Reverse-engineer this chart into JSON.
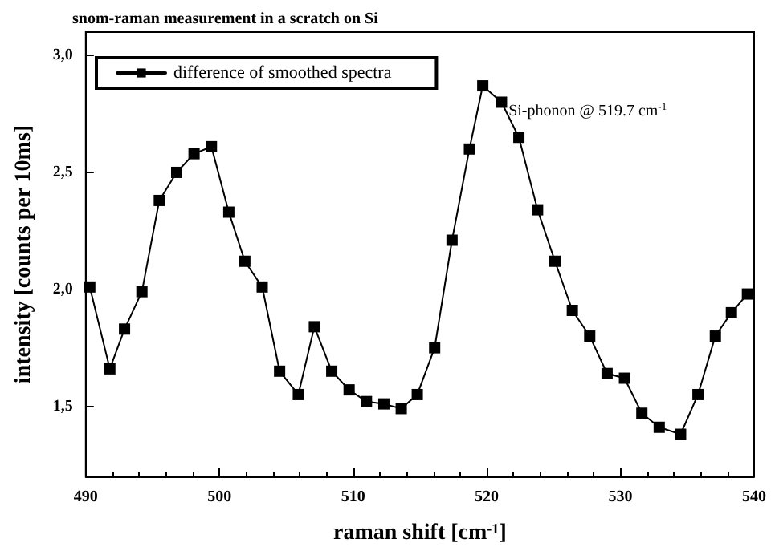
{
  "chart_data": {
    "type": "line",
    "title": "snom-raman measurement in a scratch on Si",
    "xlabel": "raman shift [cm$^{-1}$]",
    "ylabel": "intensity [counts per 10ms]",
    "annotations": [
      {
        "text": "Si-phonon @ 519.7 cm$^{-1}$",
        "x": 519.7,
        "y": 2.87
      }
    ],
    "x": [
      490.3,
      491.8,
      492.9,
      494.2,
      495.5,
      496.8,
      498.1,
      499.4,
      500.7,
      501.9,
      503.2,
      504.5,
      505.9,
      507.1,
      508.4,
      509.7,
      511.0,
      512.3,
      513.6,
      514.8,
      516.1,
      517.4,
      518.7,
      519.7,
      521.1,
      522.4,
      523.8,
      525.1,
      526.4,
      527.7,
      529.0,
      530.3,
      531.6,
      532.9,
      534.5,
      535.8,
      537.1,
      538.3,
      539.5
    ],
    "series": [
      {
        "name": "difference of smoothed spectra",
        "color": "#000000",
        "values": [
          2.01,
          1.66,
          1.83,
          1.99,
          2.38,
          2.5,
          2.58,
          2.61,
          2.33,
          2.12,
          2.01,
          1.65,
          1.55,
          1.84,
          1.65,
          1.57,
          1.52,
          1.51,
          1.49,
          1.55,
          1.75,
          2.21,
          2.6,
          2.87,
          2.8,
          2.65,
          2.34,
          2.12,
          1.91,
          1.8,
          1.64,
          1.62,
          1.47,
          1.41,
          1.38,
          1.55,
          1.8,
          1.9,
          1.98
        ]
      }
    ],
    "xlim": [
      490,
      540
    ],
    "xticks": [
      490,
      500,
      510,
      520,
      530,
      540
    ],
    "ylim": [
      1.2,
      3.1
    ],
    "yticks": [
      {
        "value": 1.5,
        "label": "1,5"
      },
      {
        "value": 2.0,
        "label": "2,0"
      },
      {
        "value": 2.5,
        "label": "2,5"
      },
      {
        "value": 3.0,
        "label": "3,0"
      }
    ],
    "grid": false,
    "legend": "top left",
    "marker": "square",
    "line_style": "solid"
  }
}
